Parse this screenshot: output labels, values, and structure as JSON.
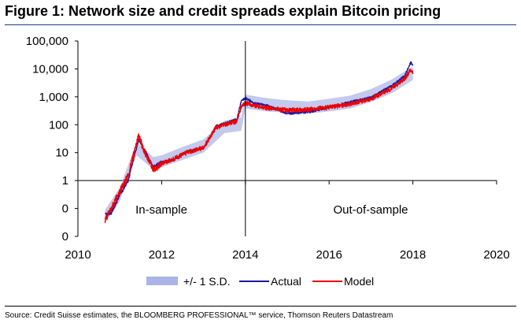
{
  "figure": {
    "title": "Figure 1: Network size and credit spreads explain Bitcoin pricing",
    "source": "Source: Credit Suisse estimates, the BLOOMBERG PROFESSIONAL™ service, Thomson Reuters Datastream"
  },
  "chart_data": {
    "type": "line",
    "title": "Figure 1: Network size and credit spreads explain Bitcoin pricing",
    "xlabel": "",
    "ylabel": "",
    "y_scale": "log",
    "xlim": [
      2010,
      2020
    ],
    "x_ticks": [
      "2010",
      "2012",
      "2014",
      "2016",
      "2018",
      "2020"
    ],
    "y_ticks": [
      "0",
      "0",
      "1",
      "10",
      "100",
      "1,000",
      "10,000",
      "100,000"
    ],
    "grid": false,
    "legend_position": "bottom",
    "sample_split_x": 2014.0,
    "region_labels": [
      "In-sample",
      "Out-of-sample"
    ],
    "series": [
      {
        "name": "+/- 1 S.D.",
        "style": "band",
        "color": "#aab4e6",
        "x": [
          2010.65,
          2011.0,
          2011.4,
          2011.8,
          2012.0,
          2012.5,
          2013.0,
          2013.5,
          2013.9,
          2014.0,
          2014.5,
          2015.0,
          2015.5,
          2016.0,
          2016.5,
          2017.0,
          2017.5,
          2017.9,
          2018.0
        ],
        "lower": [
          0.03,
          0.18,
          8,
          2.5,
          3,
          5.5,
          10,
          50,
          60,
          380,
          300,
          270,
          250,
          300,
          380,
          650,
          1350,
          3200,
          4000
        ],
        "upper": [
          0.09,
          0.55,
          24,
          7,
          8,
          16,
          30,
          140,
          180,
          1200,
          900,
          750,
          680,
          850,
          1100,
          1900,
          4200,
          10000,
          12000
        ]
      },
      {
        "name": "Actual",
        "style": "line",
        "color": "#1a1aa6",
        "x": [
          2010.65,
          2010.8,
          2011.0,
          2011.2,
          2011.4,
          2011.45,
          2011.6,
          2011.8,
          2012.0,
          2012.3,
          2012.6,
          2013.0,
          2013.3,
          2013.5,
          2013.8,
          2013.9,
          2014.0,
          2014.2,
          2014.5,
          2015.0,
          2015.5,
          2016.0,
          2016.5,
          2017.0,
          2017.5,
          2017.8,
          2017.95,
          2018.0
        ],
        "y": [
          0.06,
          0.07,
          0.3,
          1.0,
          15,
          30,
          12,
          3,
          4.5,
          5.5,
          11,
          14,
          90,
          110,
          160,
          700,
          900,
          600,
          500,
          250,
          280,
          420,
          650,
          950,
          2500,
          5500,
          17000,
          13500
        ]
      },
      {
        "name": "Model",
        "style": "line",
        "color": "#ee0000",
        "x": [
          2010.65,
          2010.8,
          2011.0,
          2011.2,
          2011.4,
          2011.45,
          2011.6,
          2011.8,
          2012.0,
          2012.3,
          2012.6,
          2013.0,
          2013.3,
          2013.5,
          2013.8,
          2013.9,
          2014.0,
          2014.2,
          2014.5,
          2015.0,
          2015.5,
          2016.0,
          2016.5,
          2017.0,
          2017.5,
          2017.8,
          2017.95,
          2018.0
        ],
        "y": [
          0.04,
          0.1,
          0.4,
          1.5,
          20,
          40,
          10,
          2.5,
          4,
          6,
          10,
          15,
          80,
          100,
          130,
          450,
          600,
          500,
          400,
          330,
          350,
          420,
          550,
          850,
          2000,
          4500,
          9000,
          7500
        ]
      }
    ]
  }
}
